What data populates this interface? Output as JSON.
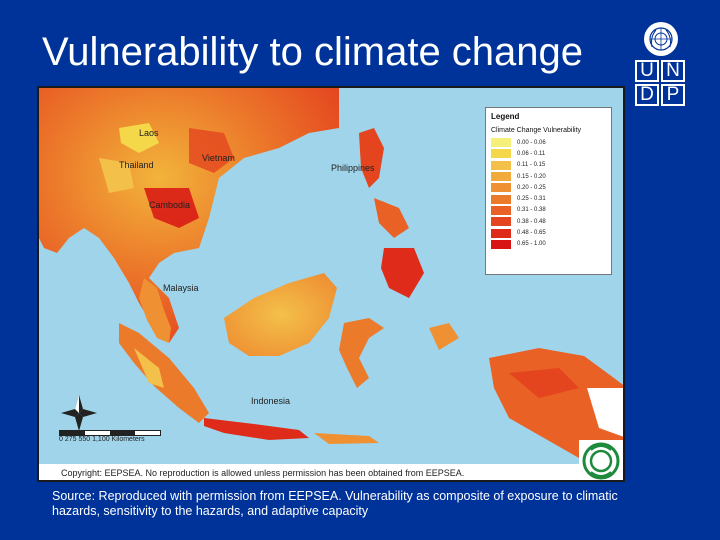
{
  "slide": {
    "title": "Vulnerability to climate change",
    "source": "Source: Reproduced with permission from EEPSEA. Vulnerability as composite of exposure to climatic hazards, sensitivity to the hazards, and adaptive capacity"
  },
  "logo": {
    "letters": [
      "U",
      "N",
      "D",
      "P"
    ]
  },
  "map": {
    "places": [
      "Laos",
      "Thailand",
      "Vietnam",
      "Cambodia",
      "Philippines",
      "Malaysia",
      "Indonesia"
    ],
    "scale": {
      "ticks": "0    275    550            1,100 Kilometers"
    },
    "copyright": "Copyright:  EEPSEA.  No reproduction is allowed unless permission has been obtained from EEPSEA.",
    "legend": {
      "title": "Legend",
      "subtitle": "Climate Change Vulnerability",
      "classes": [
        {
          "label": "0.00 - 0.06",
          "color": "#f5f07a"
        },
        {
          "label": "0.06 - 0.11",
          "color": "#f5d74a"
        },
        {
          "label": "0.11 - 0.15",
          "color": "#f3c04a"
        },
        {
          "label": "0.15 - 0.20",
          "color": "#f2aa3c"
        },
        {
          "label": "0.20 - 0.25",
          "color": "#ef9133"
        },
        {
          "label": "0.25 - 0.31",
          "color": "#ec7a2b"
        },
        {
          "label": "0.31 - 0.38",
          "color": "#e96124"
        },
        {
          "label": "0.38 - 0.48",
          "color": "#e4451f"
        },
        {
          "label": "0.48 - 0.65",
          "color": "#df2b1a"
        },
        {
          "label": "0.65 - 1.00",
          "color": "#d81414"
        }
      ]
    }
  }
}
